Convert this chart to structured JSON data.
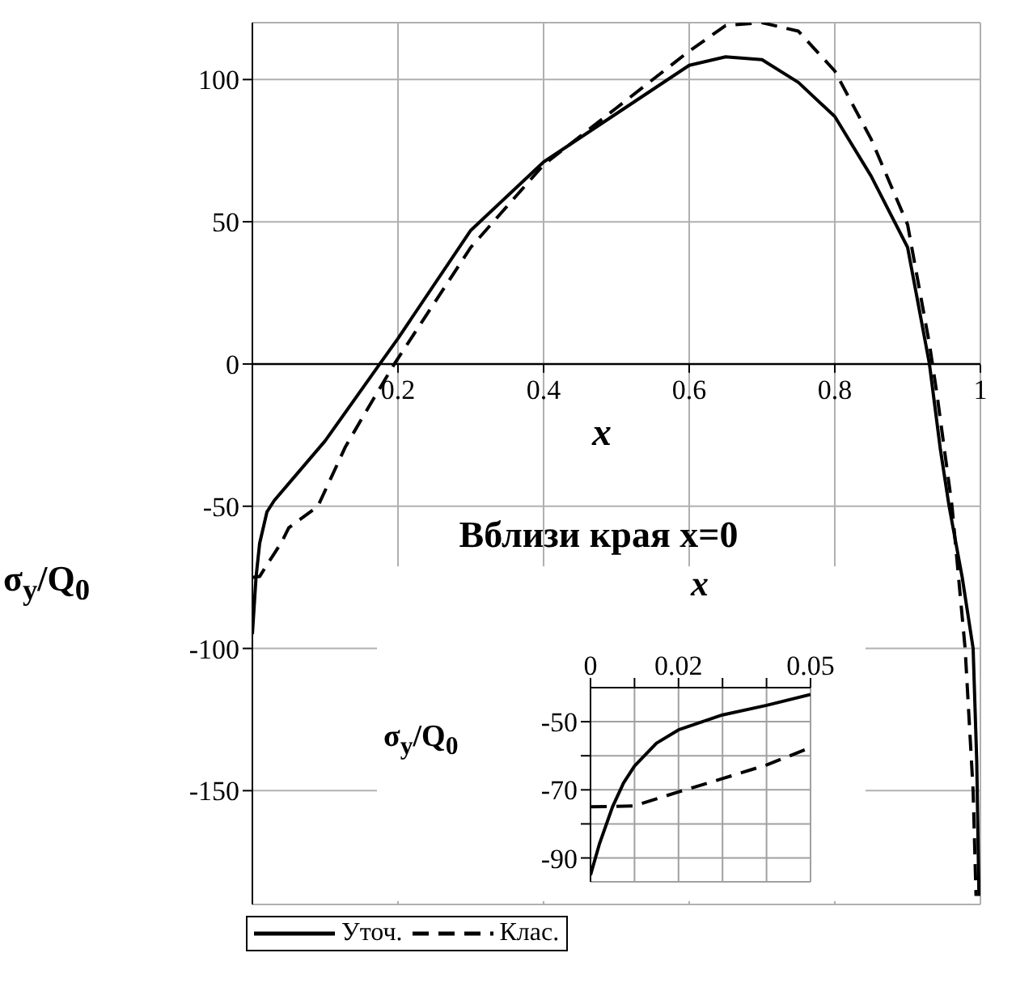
{
  "chart_data": [
    {
      "type": "line",
      "xlabel": "x",
      "ylabel": "σ$_{y}$/Q$_{0}$",
      "xlim": [
        0,
        1
      ],
      "ylim": [
        -190,
        120
      ],
      "xticks": [
        {
          "value": 0,
          "label": null
        },
        0.2,
        0.4,
        0.6,
        0.8,
        1
      ],
      "yticks": [
        -150,
        -100,
        -50,
        0,
        50,
        100
      ],
      "grid": true,
      "legend": "bottom",
      "series": [
        {
          "name": "Уточ.",
          "color": "#000000",
          "line_style": "solid",
          "x": [
            0,
            0.005,
            0.01,
            0.02,
            0.03,
            0.05,
            0.1,
            0.175,
            0.2,
            0.3,
            0.4,
            0.5,
            0.6,
            0.65,
            0.7,
            0.75,
            0.8,
            0.85,
            0.9,
            0.93,
            0.945,
            0.957,
            0.975,
            0.99,
            0.995,
            0.998
          ],
          "values": [
            -95,
            -75,
            -63,
            -52,
            -48,
            -42,
            -27,
            0,
            9,
            47,
            71,
            88,
            105,
            108,
            107,
            99,
            87,
            66,
            41,
            0,
            -30,
            -50,
            -75,
            -100,
            -140,
            -187
          ]
        },
        {
          "name": "Клас.",
          "color": "#000000",
          "line_style": "dashed",
          "x": [
            0,
            0.01,
            0.02,
            0.03,
            0.04,
            0.05,
            0.09,
            0.128,
            0.16,
            0.195,
            0.3,
            0.4,
            0.5,
            0.6,
            0.65,
            0.7,
            0.75,
            0.8,
            0.85,
            0.9,
            0.93,
            0.94,
            0.961,
            0.979,
            0.99,
            0.994
          ],
          "values": [
            -75,
            -74.7,
            -70.6,
            -66.7,
            -62.7,
            -57.6,
            -50,
            -29,
            -15,
            0,
            41,
            70,
            90,
            110,
            119,
            120,
            117,
            103,
            79,
            49,
            7,
            -10,
            -50,
            -100,
            -150,
            -187
          ]
        }
      ]
    },
    {
      "type": "line",
      "title": "Вблизи края x=0",
      "xlabel": "x",
      "ylabel": "σ$_{y}$/Q$_{0}$",
      "xlim": [
        0,
        0.05
      ],
      "ylim": [
        -97,
        -40
      ],
      "xticks": [
        0,
        {
          "value": 0.01,
          "label": null
        },
        0.02,
        {
          "value": 0.03,
          "label": null
        },
        {
          "value": 0.04,
          "label": null
        },
        0.05
      ],
      "yticks": [
        -90,
        {
          "value": -80,
          "label": null
        },
        -70,
        {
          "value": -60,
          "label": null
        },
        -50
      ],
      "grid": true,
      "series": [
        {
          "color": "#000000",
          "line_style": "solid",
          "x": [
            0,
            0.002,
            0.005,
            0.0075,
            0.01,
            0.015,
            0.02,
            0.03,
            0.04,
            0.05
          ],
          "values": [
            -95,
            -86,
            -75,
            -68,
            -63,
            -56.3,
            -52.4,
            -48,
            -45.2,
            -42
          ]
        },
        {
          "color": "#000000",
          "line_style": "dashed",
          "x": [
            0,
            0.01,
            0.02,
            0.03,
            0.04,
            0.05
          ],
          "values": [
            -75,
            -74.7,
            -70.6,
            -66.7,
            -62.7,
            -57.6
          ]
        }
      ]
    }
  ]
}
